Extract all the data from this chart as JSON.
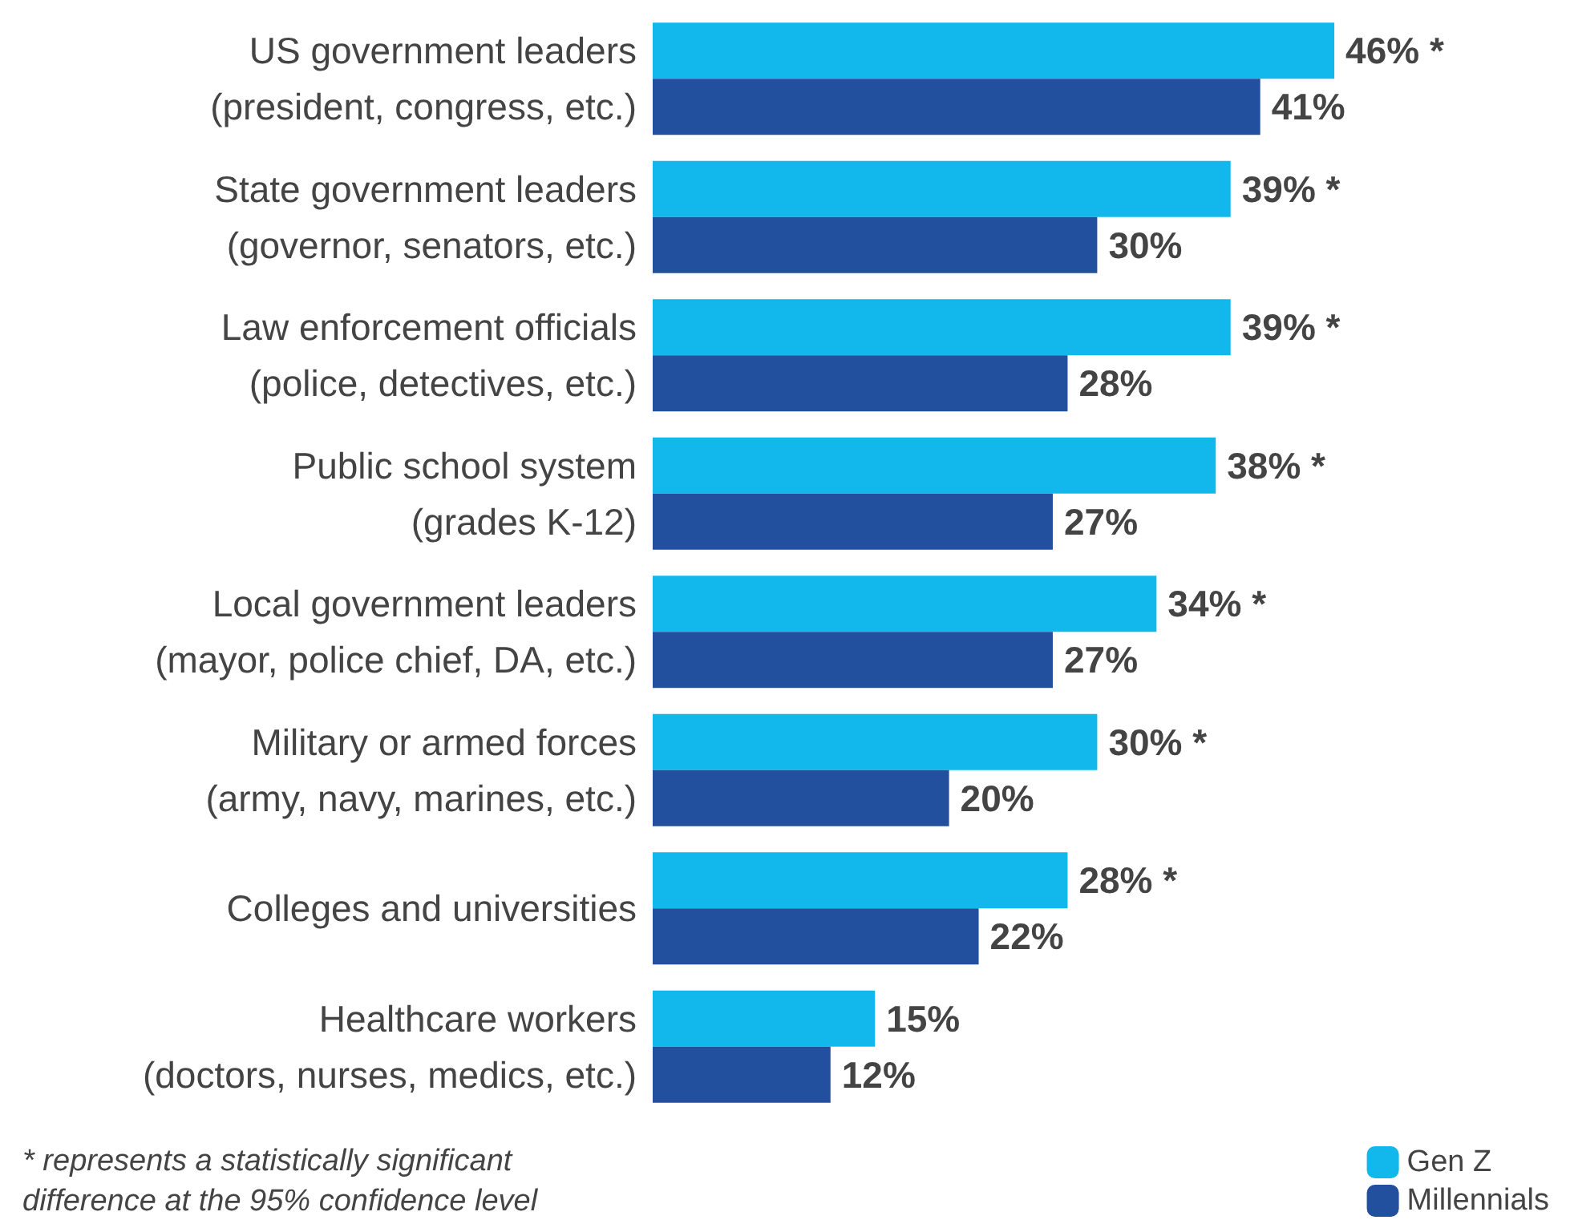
{
  "chart_data": {
    "type": "bar",
    "orientation": "horizontal",
    "categories": [
      "US government leaders\n(president, congress, etc.)",
      "State government leaders\n(governor, senators, etc.)",
      "Law enforcement officials\n(police, detectives, etc.)",
      "Public school system\n(grades K-12)",
      "Local government leaders\n(mayor, police chief, DA, etc.)",
      "Military or armed forces\n(army, navy, marines, etc.)",
      "Colleges and universities",
      "Healthcare workers\n(doctors, nurses, medics, etc.)"
    ],
    "series": [
      {
        "name": "Gen Z",
        "color": "#12b8ec",
        "values": [
          46,
          39,
          39,
          38,
          34,
          30,
          28,
          15
        ],
        "value_labels": [
          "46% *",
          "39% *",
          "39% *",
          "38% *",
          "34% *",
          "30% *",
          "28% *",
          "15%"
        ]
      },
      {
        "name": "Millennials",
        "color": "#234f9f",
        "values": [
          41,
          30,
          28,
          27,
          27,
          20,
          22,
          12
        ],
        "value_labels": [
          "41%",
          "30%",
          "28%",
          "27%",
          "27%",
          "20%",
          "22%",
          "12%"
        ]
      }
    ],
    "legend": "bottom right",
    "grid": false,
    "annotations": [
      "* represents a statistically significant\ndifference at the 95% confidence level"
    ]
  }
}
